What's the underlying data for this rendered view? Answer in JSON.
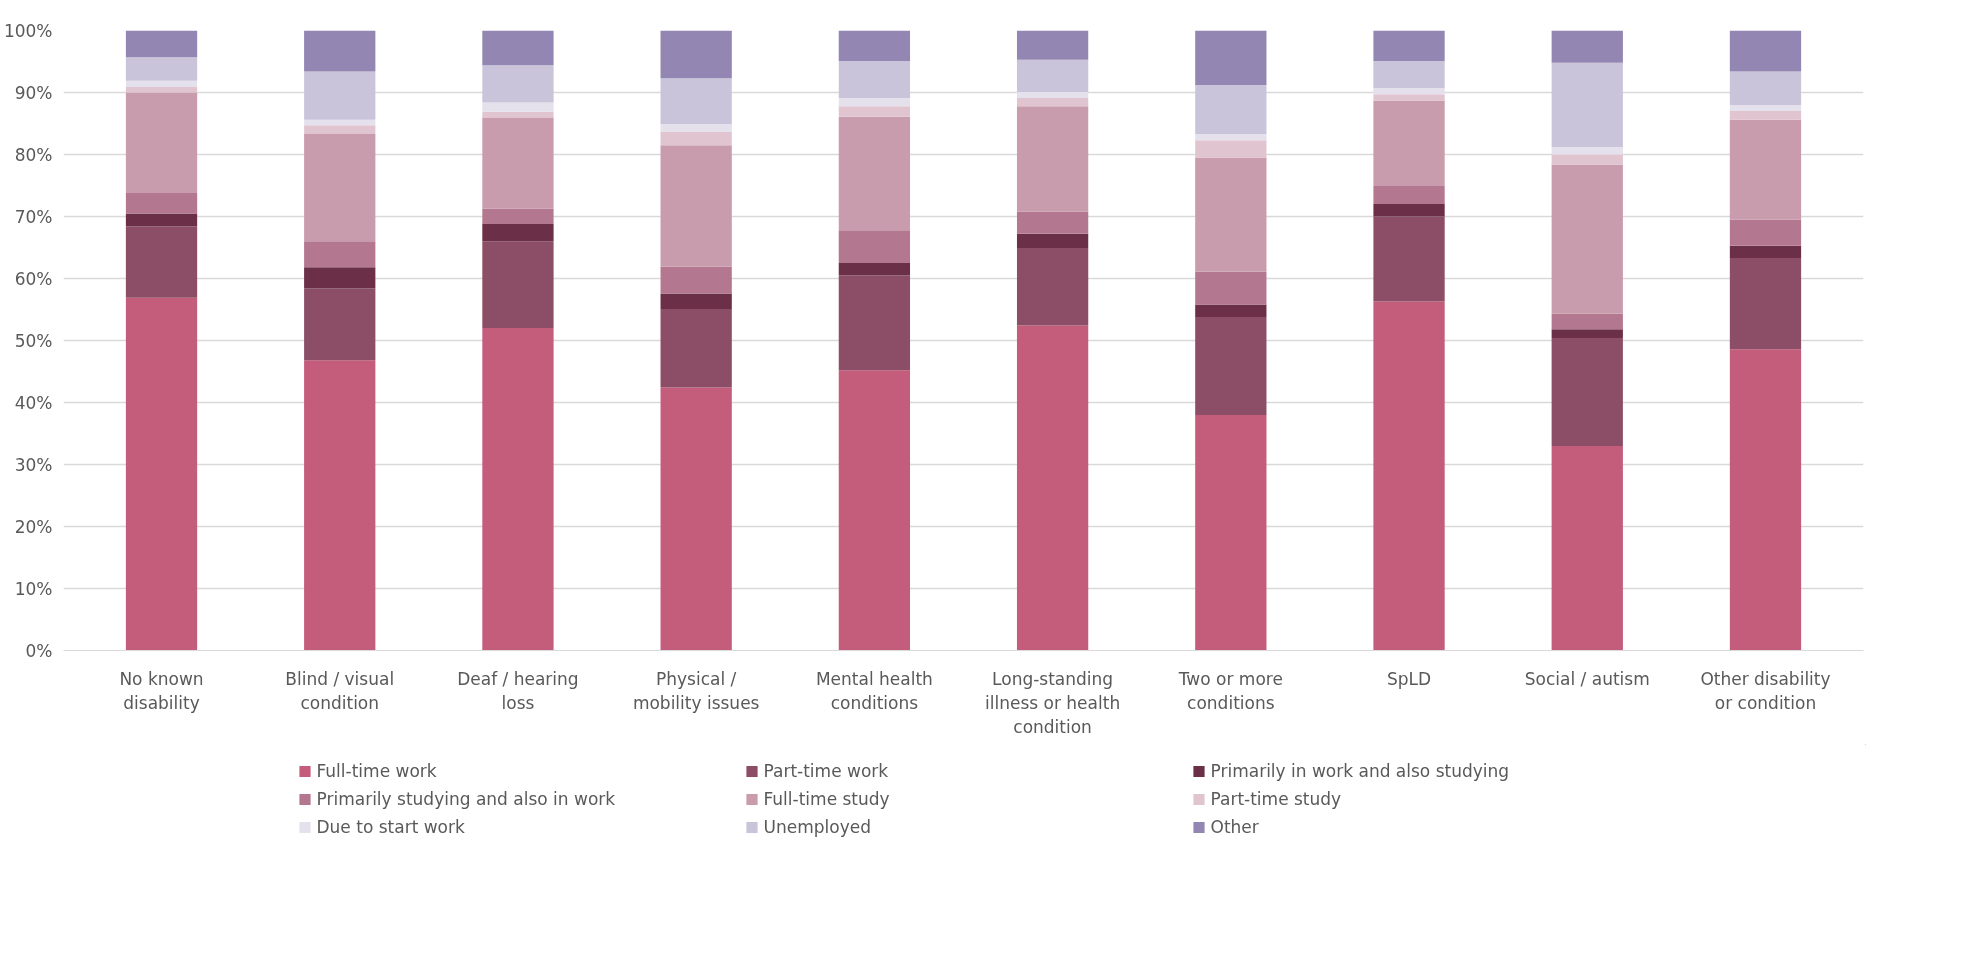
{
  "chart_data": {
    "type": "bar",
    "stacked": true,
    "categories": [
      "No known disability",
      "Blind / visual condition",
      "Deaf / hearing loss",
      "Physical / mobility issues",
      "Mental health conditions",
      "Long-standing illness or health condition",
      "Two or more conditions",
      "SpLD",
      "Social / autism",
      "Other disability or condition"
    ],
    "series": [
      {
        "name": "Full-time work",
        "color": "#c45c7c",
        "values": [
          56.9,
          46.8,
          52.0,
          42.4,
          45.2,
          52.4,
          38.0,
          56.3,
          33.0,
          48.6
        ]
      },
      {
        "name": "Part-time work",
        "color": "#8c4e66",
        "values": [
          11.5,
          11.6,
          14.0,
          12.7,
          15.3,
          12.5,
          15.8,
          13.7,
          17.4,
          14.7
        ]
      },
      {
        "name": "Primarily in work and also studying",
        "color": "#6b3048",
        "values": [
          2.1,
          3.4,
          2.8,
          2.5,
          2.0,
          2.3,
          2.0,
          2.0,
          1.4,
          2.0
        ]
      },
      {
        "name": "Primarily studying and also in work",
        "color": "#b3788f",
        "values": [
          3.3,
          4.2,
          2.5,
          4.3,
          5.3,
          3.6,
          5.3,
          2.9,
          2.5,
          4.2
        ]
      },
      {
        "name": "Full-time study",
        "color": "#c99cad",
        "values": [
          16.2,
          17.3,
          14.6,
          19.6,
          18.3,
          17.0,
          18.4,
          13.8,
          24.1,
          16.1
        ]
      },
      {
        "name": "Part-time study",
        "color": "#e0c5d0",
        "values": [
          0.9,
          1.4,
          1.0,
          2.2,
          1.7,
          1.3,
          2.8,
          1.0,
          1.6,
          1.4
        ]
      },
      {
        "name": "Due to start work",
        "color": "#e5e1ec",
        "values": [
          1.0,
          0.9,
          1.5,
          1.2,
          1.3,
          1.0,
          1.0,
          1.0,
          1.2,
          1.0
        ]
      },
      {
        "name": "Unemployed",
        "color": "#c9c4da",
        "values": [
          3.8,
          7.8,
          6.0,
          7.4,
          6.0,
          5.2,
          7.9,
          4.4,
          13.6,
          5.4
        ]
      },
      {
        "name": "Other",
        "color": "#9486b2",
        "values": [
          4.3,
          6.6,
          5.6,
          7.7,
          4.9,
          4.7,
          8.8,
          4.9,
          5.2,
          6.6
        ]
      }
    ],
    "ylim": [
      0,
      100
    ],
    "yticks": [
      {
        "value": 0,
        "label": "0%"
      },
      {
        "value": 10,
        "label": "10%"
      },
      {
        "value": 20,
        "label": "20%"
      },
      {
        "value": 30,
        "label": "30%"
      },
      {
        "value": 40,
        "label": "40%"
      },
      {
        "value": 50,
        "label": "50%"
      },
      {
        "value": 60,
        "label": "60%"
      },
      {
        "value": 70,
        "label": "70%"
      },
      {
        "value": 80,
        "label": "80%"
      },
      {
        "value": 90,
        "label": "90%"
      },
      {
        "value": 100,
        "label": "100%"
      }
    ],
    "grid": "y",
    "legend": "bottom"
  }
}
